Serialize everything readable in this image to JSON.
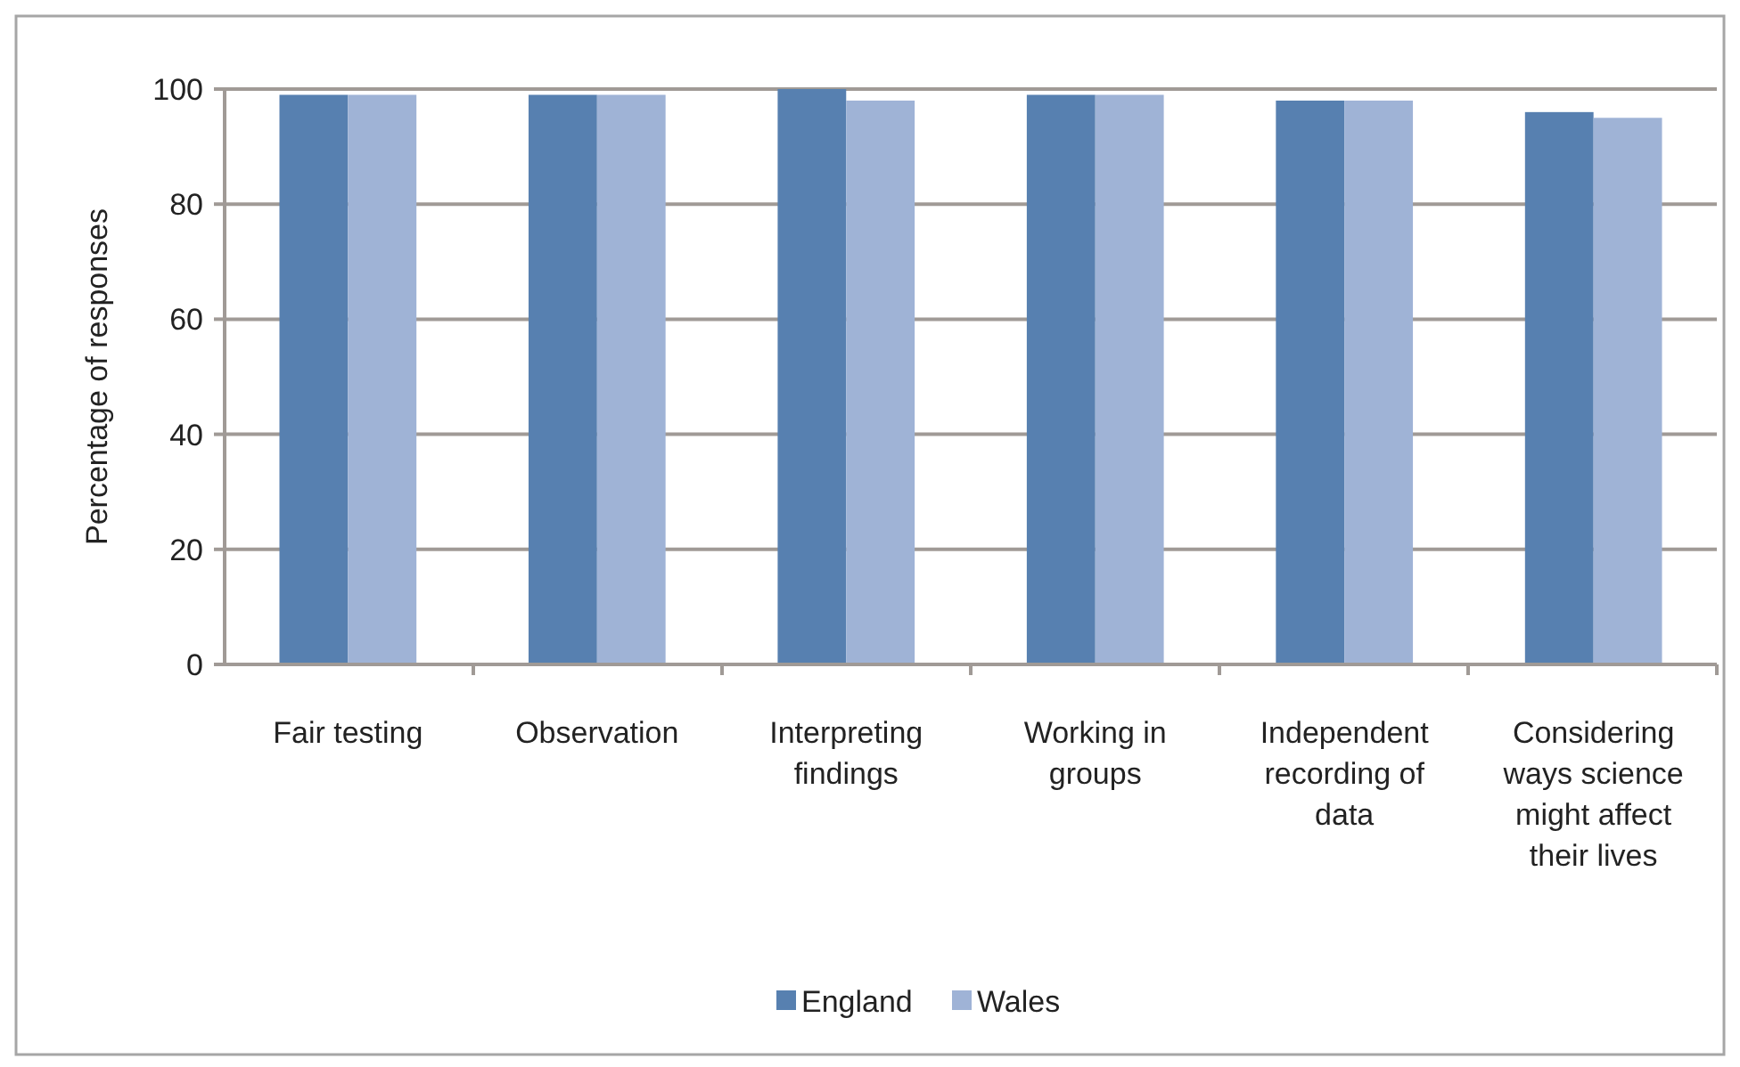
{
  "chart_data": {
    "type": "bar",
    "ylabel": "Percentage of responses",
    "categories": [
      "Fair testing",
      "Observation",
      "Interpreting findings",
      "Working in groups",
      "Independent recording of data",
      "Considering ways science might affect their lives"
    ],
    "series": [
      {
        "name": "England",
        "color": "#5780b0",
        "values": [
          99,
          99,
          100,
          99,
          98,
          96
        ]
      },
      {
        "name": "Wales",
        "color": "#9fb3d6",
        "values": [
          99,
          99,
          98,
          99,
          98,
          95
        ]
      }
    ],
    "ylim": [
      0,
      100
    ],
    "yticks": [
      0,
      20,
      40,
      60,
      80,
      100
    ],
    "grid": "y",
    "legend": "bottom"
  }
}
